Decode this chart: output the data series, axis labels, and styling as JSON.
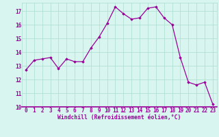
{
  "x": [
    0,
    1,
    2,
    3,
    4,
    5,
    6,
    7,
    8,
    9,
    10,
    11,
    12,
    13,
    14,
    15,
    16,
    17,
    18,
    19,
    20,
    21,
    22,
    23
  ],
  "y": [
    12.7,
    13.4,
    13.5,
    13.6,
    12.8,
    13.5,
    13.3,
    13.3,
    14.3,
    15.1,
    16.1,
    17.3,
    16.8,
    16.4,
    16.5,
    17.2,
    17.3,
    16.5,
    16.0,
    13.6,
    11.8,
    11.6,
    11.8,
    10.2
  ],
  "line_color": "#990099",
  "marker": "D",
  "marker_size": 1.8,
  "bg_color": "#d8f5f0",
  "grid_color": "#aaddcc",
  "xlabel": "Windchill (Refroidissement éolien,°C)",
  "xlabel_color": "#990099",
  "tick_color": "#990099",
  "ylim": [
    10,
    17.6
  ],
  "yticks": [
    10,
    11,
    12,
    13,
    14,
    15,
    16,
    17
  ],
  "xlim": [
    -0.5,
    23.5
  ],
  "font_size": 5.5,
  "xlabel_fontsize": 5.8,
  "line_width": 0.9,
  "separator_color": "#990099"
}
